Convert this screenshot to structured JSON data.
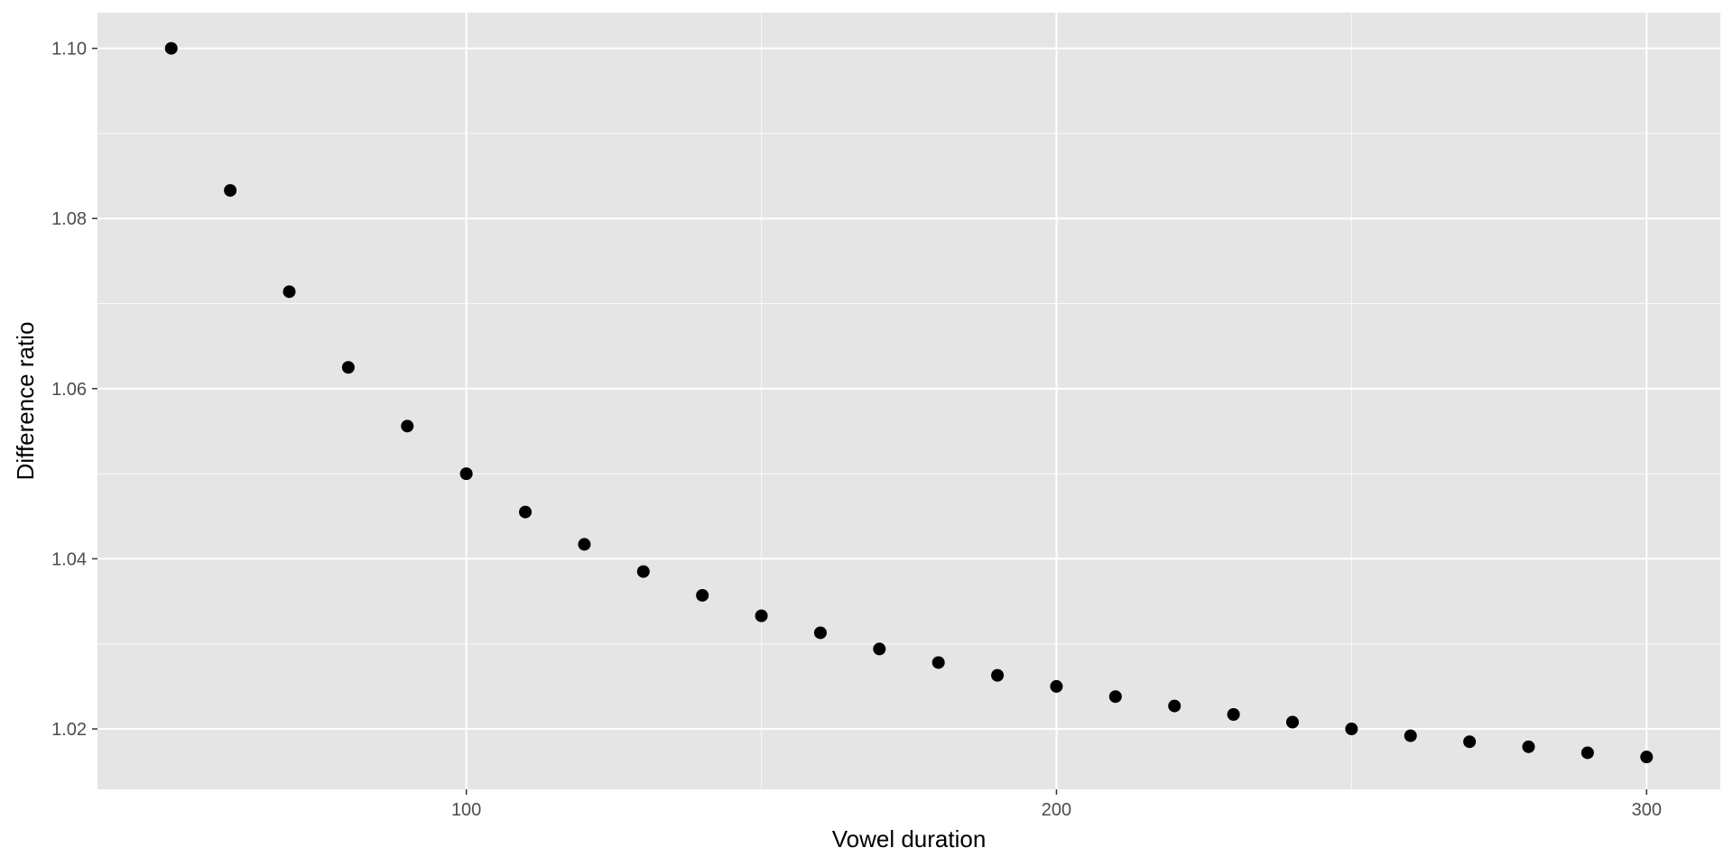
{
  "chart_data": {
    "type": "scatter",
    "title": "",
    "xlabel": "Vowel duration",
    "ylabel": "Difference ratio",
    "xlim": [
      37.5,
      312.5
    ],
    "ylim": [
      1.0129,
      1.1042
    ],
    "x_major_ticks": [
      100,
      200,
      300
    ],
    "x_minor_ticks": [
      150,
      250
    ],
    "y_major_ticks": [
      1.02,
      1.04,
      1.06,
      1.08,
      1.1
    ],
    "y_minor_ticks": [
      1.03,
      1.05,
      1.07,
      1.09
    ],
    "x_tick_labels": [
      "100",
      "200",
      "300"
    ],
    "y_tick_labels": [
      "1.02",
      "1.04",
      "1.06",
      "1.08",
      "1.10"
    ],
    "grid": true,
    "background": "#e5e5e5",
    "point_color": "#000000",
    "series": [
      {
        "x": [
          50,
          60,
          70,
          80,
          90,
          100,
          110,
          120,
          130,
          140,
          150,
          160,
          170,
          180,
          190,
          200,
          210,
          220,
          230,
          240,
          250,
          260,
          270,
          280,
          290,
          300
        ],
        "y": [
          1.1,
          1.0833,
          1.0714,
          1.0625,
          1.0556,
          1.05,
          1.0455,
          1.0417,
          1.0385,
          1.0357,
          1.0333,
          1.0313,
          1.0294,
          1.0278,
          1.0263,
          1.025,
          1.0238,
          1.0227,
          1.0217,
          1.0208,
          1.02,
          1.0192,
          1.0185,
          1.0179,
          1.0172,
          1.0167
        ]
      }
    ]
  }
}
